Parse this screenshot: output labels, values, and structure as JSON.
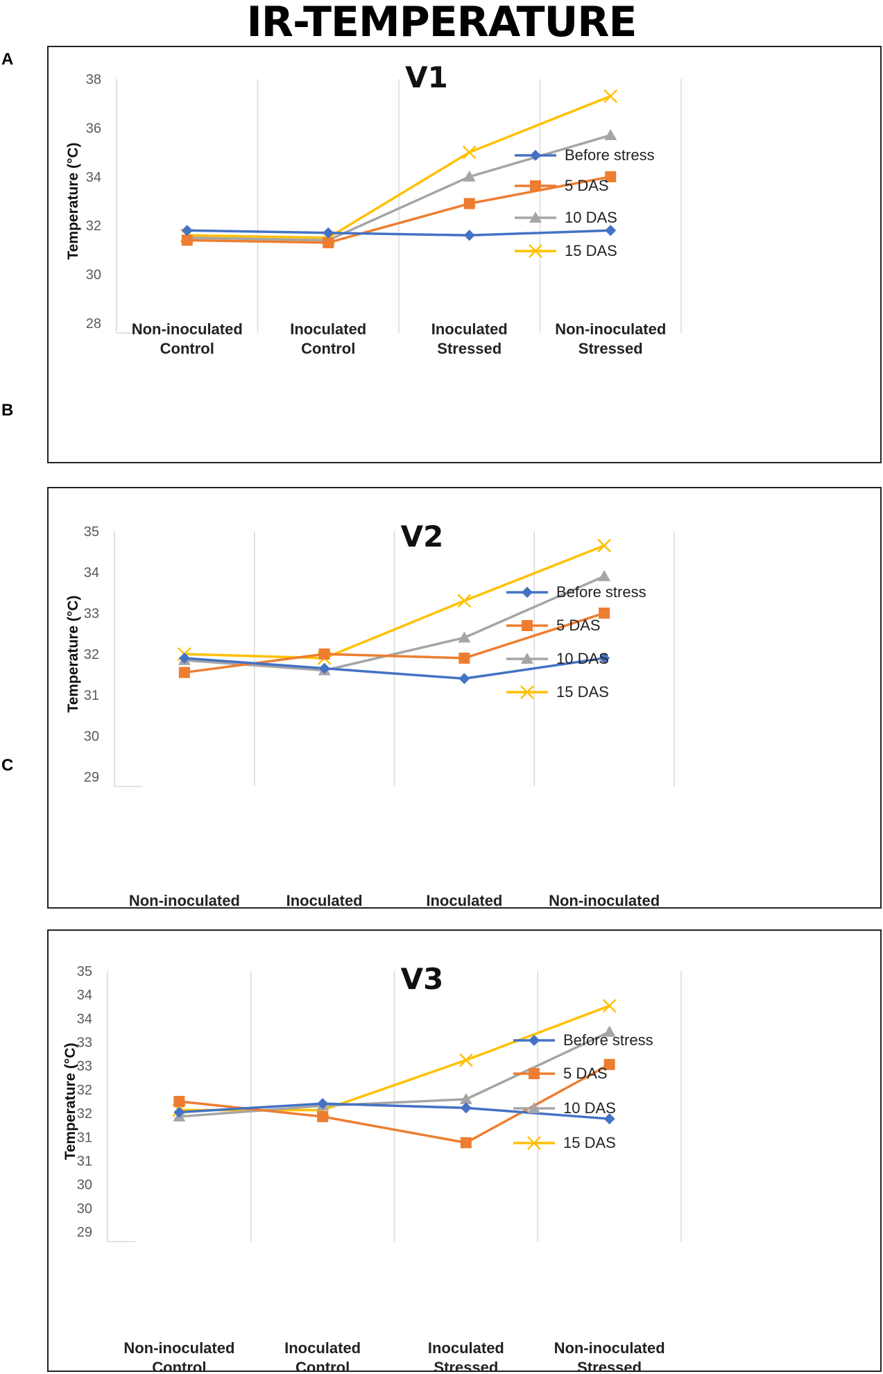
{
  "title": "IR-TEMPERATURE",
  "colors": {
    "Before stress": "#4472C4",
    "5 DAS": "#ED7D31",
    "10 DAS": "#A5A5A5",
    "15 DAS": "#FFC000"
  },
  "panels": [
    {
      "letter": "A"
    },
    {
      "letter": "B"
    },
    {
      "letter": "C"
    }
  ],
  "chart_data": [
    {
      "type": "line",
      "title": "V1",
      "xlabel": "",
      "ylabel": "Temperature (°C)",
      "ylim": [
        28,
        38
      ],
      "yticks": [
        "28",
        "30",
        "32",
        "34",
        "36",
        "38"
      ],
      "categories": [
        "Non-inoculated Control",
        "Inoculated Control",
        "Inoculated Stressed",
        "Non-inoculated Stressed"
      ],
      "series": [
        {
          "name": "Before stress",
          "marker": "diamond",
          "values": [
            31.8,
            31.7,
            31.6,
            31.8
          ]
        },
        {
          "name": "5 DAS",
          "marker": "square",
          "values": [
            31.4,
            31.3,
            32.9,
            34.0
          ]
        },
        {
          "name": "10 DAS",
          "marker": "triangle",
          "values": [
            31.5,
            31.4,
            34.0,
            35.7
          ]
        },
        {
          "name": "15 DAS",
          "marker": "x",
          "values": [
            31.6,
            31.5,
            35.0,
            37.3
          ]
        }
      ],
      "grid": "vertical",
      "legend": "right"
    },
    {
      "type": "line",
      "title": "V2",
      "xlabel": "",
      "ylabel": "Temperature (°C)",
      "ylim": [
        29,
        35
      ],
      "yticks": [
        "29",
        "30",
        "31",
        "32",
        "33",
        "34",
        "35"
      ],
      "categories": [
        "Non-inoculated Control",
        "Inoculated Control",
        "Inoculated Stressed",
        "Non-inoculated Stressed"
      ],
      "series": [
        {
          "name": "Before stress",
          "marker": "diamond",
          "values": [
            31.9,
            31.65,
            31.4,
            31.9
          ]
        },
        {
          "name": "5 DAS",
          "marker": "square",
          "values": [
            31.55,
            32.0,
            31.9,
            33.0
          ]
        },
        {
          "name": "10 DAS",
          "marker": "triangle",
          "values": [
            31.85,
            31.6,
            32.4,
            33.9
          ]
        },
        {
          "name": "15 DAS",
          "marker": "x",
          "values": [
            32.0,
            31.9,
            33.3,
            34.65
          ]
        }
      ],
      "grid": "vertical",
      "legend": "right"
    },
    {
      "type": "line",
      "title": "V3",
      "xlabel": "",
      "ylabel": "Temperature (°C)",
      "ylim": [
        29,
        35
      ],
      "yticks": [
        "29",
        "30",
        "30",
        "31",
        "31",
        "32",
        "32",
        "33",
        "33",
        "34",
        "34",
        "35"
      ],
      "categories": [
        "Non-inoculated Control",
        "Inoculated Control",
        "Inoculated Stressed",
        "Non-inoculated Stressed"
      ],
      "series": [
        {
          "name": "Before stress",
          "marker": "diamond",
          "values": [
            31.75,
            31.95,
            31.85,
            31.6
          ]
        },
        {
          "name": "5 DAS",
          "marker": "square",
          "values": [
            32.0,
            31.65,
            31.05,
            32.85
          ]
        },
        {
          "name": "10 DAS",
          "marker": "triangle",
          "values": [
            31.65,
            31.9,
            32.05,
            33.6
          ]
        },
        {
          "name": "15 DAS",
          "marker": "x",
          "values": [
            31.8,
            31.8,
            32.95,
            34.2
          ]
        }
      ],
      "grid": "vertical",
      "legend": "right"
    }
  ]
}
